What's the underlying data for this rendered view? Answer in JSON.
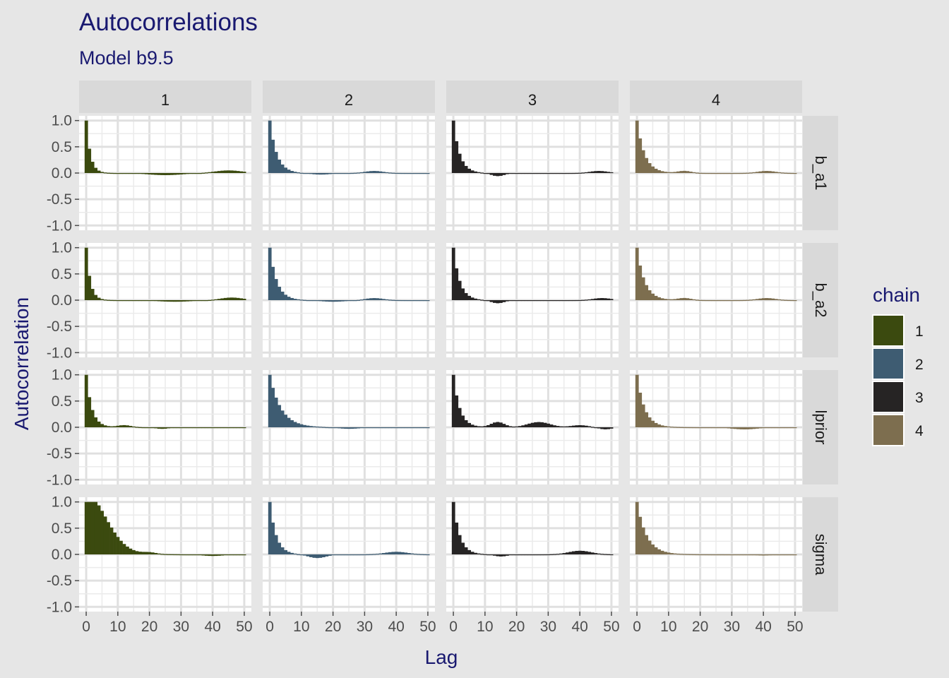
{
  "chart_data": {
    "type": "bar",
    "title": "Autocorrelations",
    "subtitle": "Model b9.5",
    "xlabel": "Lag",
    "ylabel": "Autocorrelation",
    "xlim": [
      0,
      50
    ],
    "ylim": [
      -1.0,
      1.0
    ],
    "x_ticks": [
      "0",
      "10",
      "20",
      "30",
      "40",
      "50"
    ],
    "y_ticks": [
      "1.0",
      "0.5",
      "0.0",
      "-0.5",
      "-1.0"
    ],
    "grid": true,
    "facet_columns": [
      "1",
      "2",
      "3",
      "4"
    ],
    "facet_rows": [
      "b_a1",
      "b_a2",
      "lprior",
      "sigma"
    ],
    "legend": {
      "title": "chain",
      "position": "right",
      "items": [
        {
          "label": "1",
          "color": "#3b4a0f"
        },
        {
          "label": "2",
          "color": "#3e5c72"
        },
        {
          "label": "3",
          "color": "#262424"
        },
        {
          "label": "4",
          "color": "#7d6e4f"
        }
      ]
    },
    "panels": [
      {
        "row": "b_a1",
        "chain": "1",
        "profile": "exp",
        "tau": 1.3,
        "wiggles": [
          [
            25,
            8,
            -0.04
          ],
          [
            45,
            6,
            0.05
          ]
        ]
      },
      {
        "row": "b_a1",
        "chain": "2",
        "profile": "exp",
        "tau": 2.2,
        "wiggles": [
          [
            16,
            5,
            -0.03
          ],
          [
            33,
            4,
            0.04
          ]
        ]
      },
      {
        "row": "b_a1",
        "chain": "3",
        "profile": "exp",
        "tau": 2.0,
        "wiggles": [
          [
            14,
            3,
            -0.06
          ],
          [
            46,
            4,
            0.04
          ]
        ]
      },
      {
        "row": "b_a1",
        "chain": "4",
        "profile": "exp",
        "tau": 2.4,
        "wiggles": [
          [
            15,
            3,
            0.04
          ],
          [
            41,
            4,
            0.04
          ]
        ]
      },
      {
        "row": "b_a2",
        "chain": "1",
        "profile": "exp",
        "tau": 1.3,
        "wiggles": [
          [
            28,
            8,
            -0.03
          ],
          [
            46,
            5,
            0.05
          ]
        ]
      },
      {
        "row": "b_a2",
        "chain": "2",
        "profile": "exp",
        "tau": 2.2,
        "wiggles": [
          [
            20,
            6,
            -0.03
          ],
          [
            33,
            4,
            0.04
          ]
        ]
      },
      {
        "row": "b_a2",
        "chain": "3",
        "profile": "exp",
        "tau": 2.0,
        "wiggles": [
          [
            14,
            3,
            -0.06
          ],
          [
            47,
            4,
            0.04
          ]
        ]
      },
      {
        "row": "b_a2",
        "chain": "4",
        "profile": "exp",
        "tau": 2.4,
        "wiggles": [
          [
            15,
            3,
            0.04
          ],
          [
            41,
            4,
            0.04
          ]
        ]
      },
      {
        "row": "lprior",
        "chain": "1",
        "profile": "exp",
        "tau": 1.8,
        "wiggles": [
          [
            12,
            3,
            0.04
          ],
          [
            24,
            3,
            -0.03
          ]
        ]
      },
      {
        "row": "lprior",
        "chain": "2",
        "profile": "exp",
        "tau": 3.5,
        "wiggles": [
          [
            25,
            5,
            -0.03
          ]
        ]
      },
      {
        "row": "lprior",
        "chain": "3",
        "profile": "exp",
        "tau": 2.0,
        "wiggles": [
          [
            14,
            3,
            0.1
          ],
          [
            27,
            5,
            0.1
          ],
          [
            40,
            4,
            0.04
          ],
          [
            48,
            3,
            -0.04
          ]
        ]
      },
      {
        "row": "lprior",
        "chain": "4",
        "profile": "exp",
        "tau": 2.4,
        "wiggles": [
          [
            34,
            6,
            -0.04
          ]
        ]
      },
      {
        "row": "sigma",
        "chain": "1",
        "profile": "quad",
        "tau": 9.0,
        "amp": 0.22,
        "decay": 6,
        "wiggles": [
          [
            20,
            3,
            0.03
          ],
          [
            40,
            5,
            -0.03
          ]
        ]
      },
      {
        "row": "sigma",
        "chain": "2",
        "profile": "exp",
        "tau": 2.0,
        "wiggles": [
          [
            15,
            4,
            -0.07
          ],
          [
            40,
            5,
            0.05
          ]
        ]
      },
      {
        "row": "sigma",
        "chain": "3",
        "profile": "exp",
        "tau": 2.0,
        "wiggles": [
          [
            15,
            3,
            -0.04
          ],
          [
            40,
            5,
            0.07
          ]
        ]
      },
      {
        "row": "sigma",
        "chain": "4",
        "profile": "exp",
        "tau": 3.0,
        "wiggles": [
          [
            40,
            5,
            -0.02
          ]
        ]
      }
    ]
  }
}
